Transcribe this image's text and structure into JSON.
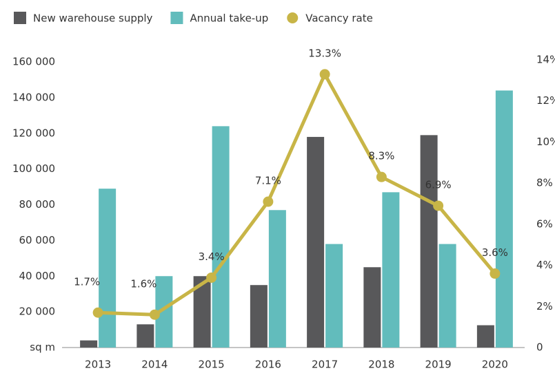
{
  "chart_data": {
    "type": "bar-line",
    "categories": [
      "2013",
      "2014",
      "2015",
      "2016",
      "2017",
      "2018",
      "2019",
      "2020"
    ],
    "series": [
      {
        "name": "New warehouse supply",
        "color": "#58585a",
        "type": "bar",
        "values": [
          4000,
          13000,
          40000,
          35000,
          118000,
          45000,
          119000,
          12500
        ]
      },
      {
        "name": "Annual take-up",
        "color": "#62bcbc",
        "type": "bar",
        "values": [
          89000,
          40000,
          124000,
          77000,
          58000,
          87000,
          58000,
          144000
        ]
      },
      {
        "name": "Vacancy rate",
        "color": "#c8b547",
        "type": "line",
        "axis": "y2",
        "values": [
          1.7,
          1.6,
          3.4,
          7.1,
          13.3,
          8.3,
          6.9,
          3.6
        ],
        "value_labels": [
          "1.7%",
          "1.6%",
          "3.4%",
          "7.1%",
          "13.3%",
          "8.3%",
          "6.9%",
          "3.6%"
        ]
      }
    ],
    "ylim": [
      0,
      160000
    ],
    "yticks": [
      {
        "value": 0,
        "label": "sq m"
      },
      {
        "value": 20000,
        "label": "20 000"
      },
      {
        "value": 40000,
        "label": "40 000"
      },
      {
        "value": 60000,
        "label": "60 000"
      },
      {
        "value": 80000,
        "label": "80 000"
      },
      {
        "value": 100000,
        "label": "100 000"
      },
      {
        "value": 120000,
        "label": "120 000"
      },
      {
        "value": 140000,
        "label": "140 000"
      },
      {
        "value": 160000,
        "label": "160 000"
      }
    ],
    "y2lim": [
      0,
      14
    ],
    "y2ticks": [
      0,
      {
        "value": 2,
        "label": "2%"
      },
      {
        "value": 4,
        "label": "4%"
      },
      {
        "value": 6,
        "label": "6%"
      },
      {
        "value": 8,
        "label": "8%"
      },
      {
        "value": 10,
        "label": "10%"
      },
      {
        "value": 12,
        "label": "12%"
      },
      {
        "value": 14,
        "label": "14%"
      }
    ],
    "grid": false,
    "legend": "top-left"
  }
}
